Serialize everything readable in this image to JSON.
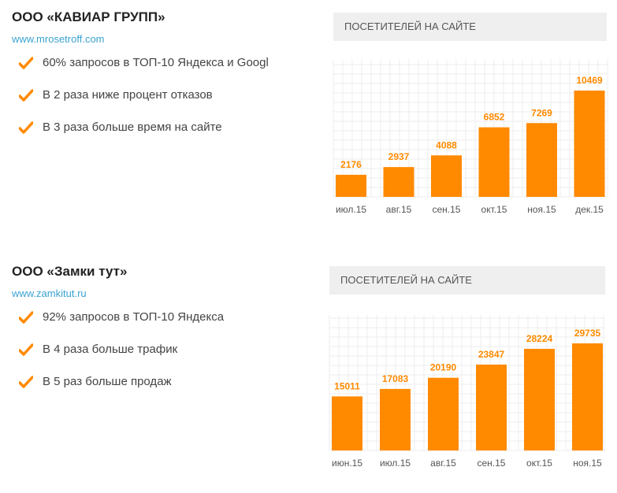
{
  "cases": [
    {
      "title": "ООО «КАВИАР ГРУПП»",
      "url": "www.mrosetroff.com",
      "bullets": [
        "60% запросов в ТОП-10 Яндекса и Googl",
        "В 2 раза ниже процент отказов",
        "В 3 раза больше время на сайте"
      ],
      "chart_header": "ПОСЕТИТЕЛЕЙ НА САЙТЕ"
    },
    {
      "title": "ООО «Замки тут»",
      "url": "www.zamkitut.ru",
      "bullets": [
        "92% запросов в ТОП-10 Яндекса",
        "В 4 раза больше трафик",
        "В 5 раз больше продаж"
      ],
      "chart_header": "ПОСЕТИТЕЛЕЙ НА САЙТЕ"
    }
  ],
  "colors": {
    "accent": "#ff8a00",
    "link": "#3aa3d0",
    "header_bg": "#efefef"
  },
  "icons": {
    "bullet": "check-icon"
  },
  "chart_data": [
    {
      "type": "bar",
      "categories": [
        "июл.15",
        "авг.15",
        "сен.15",
        "окт.15",
        "ноя.15",
        "дек.15"
      ],
      "values": [
        2176,
        2937,
        4088,
        6852,
        7269,
        10469
      ],
      "value_labels": [
        "2176",
        "2937",
        "4088",
        "6852",
        "7269",
        "10469"
      ],
      "title": "ПОСЕТИТЕЛЕЙ НА САЙТЕ",
      "ylim": [
        0,
        10469
      ],
      "grid": true
    },
    {
      "type": "bar",
      "categories": [
        "июн.15",
        "июл.15",
        "авг.15",
        "сен.15",
        "окт.15",
        "ноя.15"
      ],
      "values": [
        15011,
        17083,
        20190,
        23847,
        28224,
        29735
      ],
      "value_labels": [
        "15011",
        "17083",
        "20190",
        "23847",
        "28224",
        "29735"
      ],
      "title": "ПОСЕТИТЕЛЕЙ НА САЙТЕ",
      "ylim": [
        0,
        29735
      ],
      "grid": true
    }
  ]
}
